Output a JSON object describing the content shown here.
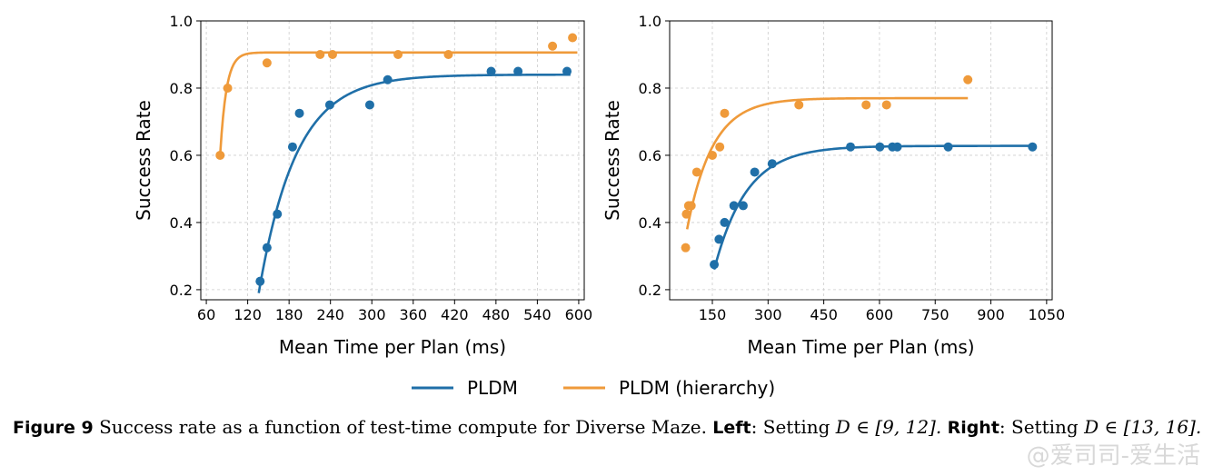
{
  "colors": {
    "pldm": "#1f6fa8",
    "pldm_hierarchy": "#ef9a3a",
    "grid": "#cccccc"
  },
  "chart_data": [
    {
      "type": "scatter",
      "panel": "left",
      "xlabel": "Mean Time per Plan (ms)",
      "ylabel": "Success Rate",
      "xlim": [
        52,
        608
      ],
      "ylim": [
        0.17,
        1.0
      ],
      "xticks": [
        60,
        120,
        180,
        240,
        300,
        360,
        420,
        480,
        540,
        600
      ],
      "yticks": [
        0.2,
        0.4,
        0.6,
        0.8,
        1.0
      ],
      "grid": true,
      "series": [
        {
          "name": "PLDM",
          "color_key": "pldm",
          "points": [
            [
              138,
              0.225
            ],
            [
              148,
              0.325
            ],
            [
              163,
              0.425
            ],
            [
              185,
              0.625
            ],
            [
              195,
              0.725
            ],
            [
              239,
              0.75
            ],
            [
              297,
              0.75
            ],
            [
              323,
              0.825
            ],
            [
              473,
              0.85
            ],
            [
              512,
              0.85
            ],
            [
              583,
              0.85
            ]
          ],
          "fit": {
            "model": "exp_saturation",
            "asymptote": 0.84,
            "x0": 136,
            "y0": 0.19,
            "k": 0.0185,
            "x_end": 588
          }
        },
        {
          "name": "PLDM (hierarchy)",
          "color_key": "pldm_hierarchy",
          "points": [
            [
              80,
              0.6
            ],
            [
              91,
              0.8
            ],
            [
              148,
              0.875
            ],
            [
              225,
              0.9
            ],
            [
              243,
              0.9
            ],
            [
              338,
              0.9
            ],
            [
              411,
              0.9
            ],
            [
              562,
              0.925
            ],
            [
              591,
              0.95
            ]
          ],
          "fit": {
            "model": "exp_saturation",
            "asymptote": 0.906,
            "x0": 80,
            "y0": 0.6,
            "k": 0.11,
            "x_end": 598
          }
        }
      ]
    },
    {
      "type": "scatter",
      "panel": "right",
      "xlabel": "Mean Time per Plan (ms)",
      "ylabel": "Success Rate",
      "xlim": [
        35,
        1065
      ],
      "ylim": [
        0.17,
        1.0
      ],
      "xticks": [
        150,
        300,
        450,
        600,
        750,
        900,
        1050
      ],
      "yticks": [
        0.2,
        0.4,
        0.6,
        0.8,
        1.0
      ],
      "grid": true,
      "series": [
        {
          "name": "PLDM",
          "color_key": "pldm",
          "points": [
            [
              155,
              0.275
            ],
            [
              168,
              0.35
            ],
            [
              183,
              0.4
            ],
            [
              208,
              0.45
            ],
            [
              233,
              0.45
            ],
            [
              264,
              0.55
            ],
            [
              311,
              0.575
            ],
            [
              522,
              0.625
            ],
            [
              601,
              0.625
            ],
            [
              635,
              0.625
            ],
            [
              648,
              0.625
            ],
            [
              785,
              0.625
            ],
            [
              1012,
              0.625
            ]
          ],
          "fit": {
            "model": "exp_saturation",
            "asymptote": 0.628,
            "x0": 155,
            "y0": 0.26,
            "k": 0.0115,
            "x_end": 1012
          }
        },
        {
          "name": "PLDM (hierarchy)",
          "color_key": "pldm_hierarchy",
          "points": [
            [
              78,
              0.325
            ],
            [
              80,
              0.425
            ],
            [
              86,
              0.45
            ],
            [
              93,
              0.45
            ],
            [
              108,
              0.55
            ],
            [
              150,
              0.6
            ],
            [
              170,
              0.625
            ],
            [
              183,
              0.725
            ],
            [
              383,
              0.75
            ],
            [
              564,
              0.75
            ],
            [
              619,
              0.75
            ],
            [
              838,
              0.825
            ]
          ],
          "fit": {
            "model": "exp_saturation",
            "asymptote": 0.77,
            "x0": 82,
            "y0": 0.38,
            "k": 0.0145,
            "x_end": 838
          }
        }
      ]
    }
  ],
  "legend": {
    "placement": "bottom-center",
    "items": [
      {
        "label": "PLDM",
        "color_key": "pldm"
      },
      {
        "label": "PLDM (hierarchy)",
        "color_key": "pldm_hierarchy"
      }
    ]
  },
  "caption": {
    "figure_label": "Figure 9",
    "text": "Success rate as a function of test-time compute for Diverse Maze.",
    "left_label": "Left",
    "left_text": ": Setting",
    "left_math": "D ∈ [9, 12].",
    "right_label": "Right",
    "right_text": ": Setting",
    "right_math": "D ∈ [13, 16]."
  },
  "watermark": "@爱司司-爱生活"
}
